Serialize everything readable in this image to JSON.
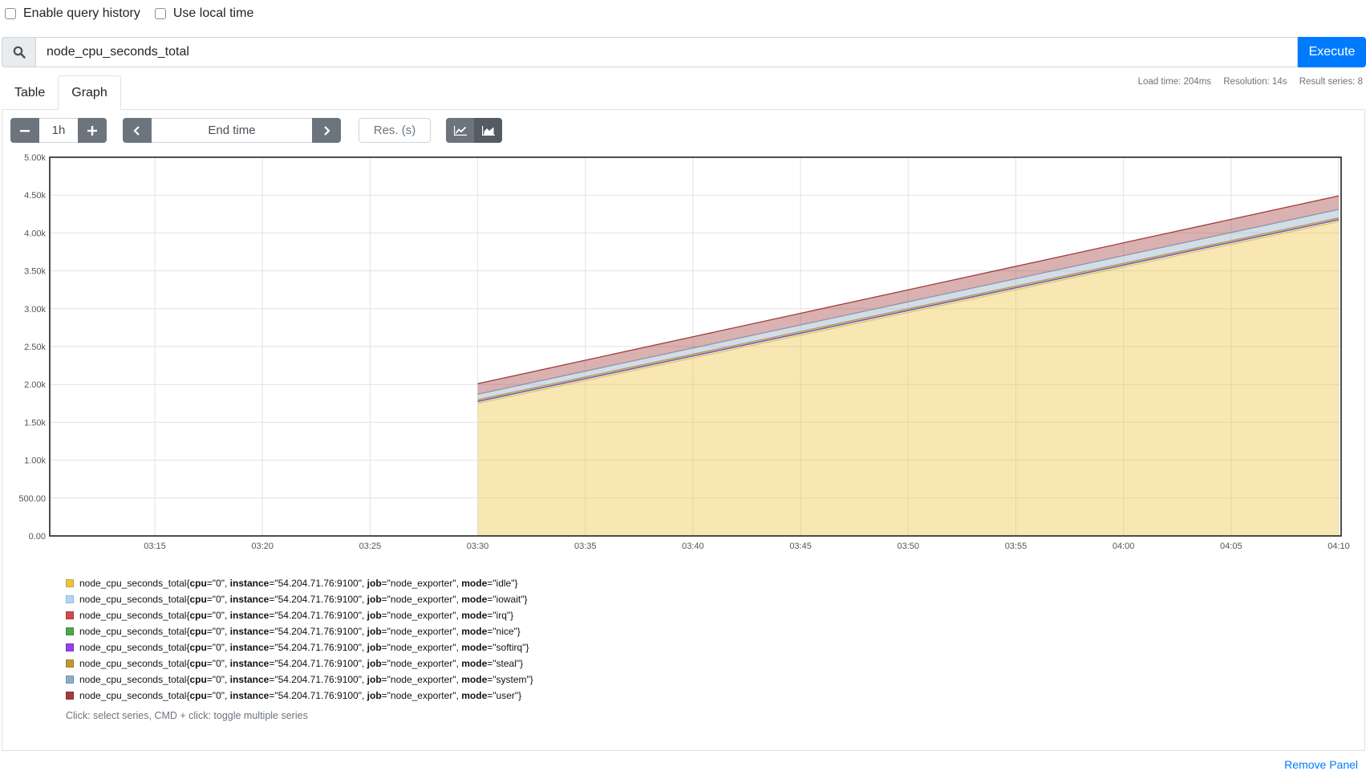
{
  "options": {
    "history_label": "Enable query history",
    "localtime_label": "Use local time"
  },
  "query": {
    "value": "node_cpu_seconds_total",
    "execute_label": "Execute"
  },
  "stats": {
    "load_time": "Load time: 204ms",
    "resolution": "Resolution: 14s",
    "result_series": "Result series: 8"
  },
  "tabs": {
    "table": "Table",
    "graph": "Graph"
  },
  "controls": {
    "range": "1h",
    "end_time": "End time",
    "resolution_placeholder": "Res. (s)"
  },
  "chart_data": {
    "type": "area",
    "stacked": true,
    "x": [
      "03:30",
      "03:35",
      "03:40",
      "03:45",
      "03:50",
      "03:55",
      "04:00",
      "04:05",
      "04:10"
    ],
    "x_ticks": [
      "03:15",
      "03:20",
      "03:25",
      "03:30",
      "03:35",
      "03:40",
      "03:45",
      "03:50",
      "03:55",
      "04:00",
      "04:05",
      "04:10"
    ],
    "y_ticks": [
      "0.00",
      "500.00",
      "1.00k",
      "1.50k",
      "2.00k",
      "2.50k",
      "3.00k",
      "3.50k",
      "4.00k",
      "4.50k",
      "5.00k"
    ],
    "ylim": [
      0,
      5000
    ],
    "series": [
      {
        "name": "idle",
        "color": "#edc240",
        "values": [
          1750,
          2050,
          2350,
          2650,
          2950,
          3250,
          3550,
          3850,
          4150
        ]
      },
      {
        "name": "iowait",
        "color": "#afd8f8",
        "values": [
          25,
          25,
          25,
          25,
          25,
          25,
          25,
          25,
          25
        ]
      },
      {
        "name": "irq",
        "color": "#cb4b4b",
        "values": [
          0,
          0,
          0,
          0,
          0,
          0,
          0,
          0,
          0
        ]
      },
      {
        "name": "nice",
        "color": "#4da74d",
        "values": [
          0,
          0,
          0,
          0,
          0,
          0,
          0,
          0,
          0
        ]
      },
      {
        "name": "softirq",
        "color": "#9440ed",
        "values": [
          5,
          5,
          5,
          5,
          5,
          5,
          5,
          5,
          5
        ]
      },
      {
        "name": "steal",
        "color": "#bd9b33",
        "values": [
          20,
          20,
          20,
          20,
          20,
          20,
          20,
          20,
          20
        ]
      },
      {
        "name": "system",
        "color": "#8cacc6",
        "values": [
          70,
          75,
          80,
          85,
          90,
          95,
          100,
          105,
          110
        ]
      },
      {
        "name": "user",
        "color": "#a23c3c",
        "values": [
          140,
          145,
          150,
          155,
          160,
          165,
          170,
          175,
          180
        ]
      }
    ]
  },
  "legend": {
    "metric": "node_cpu_seconds_total",
    "cpu": "\"0\"",
    "instance": "\"54.204.71.76:9100\"",
    "job": "\"node_exporter\"",
    "hint": "Click: select series, CMD + click: toggle multiple series"
  },
  "remove_panel": "Remove Panel"
}
